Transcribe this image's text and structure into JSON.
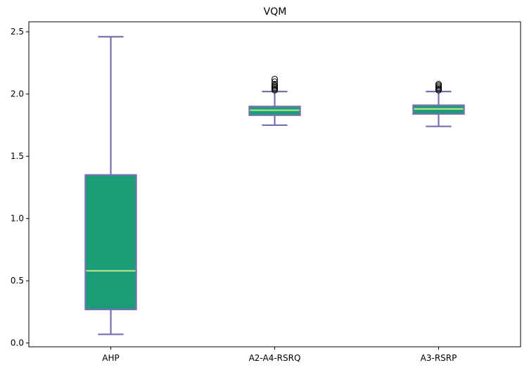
{
  "chart_data": {
    "type": "box",
    "title": "VQM",
    "xlabel": "",
    "ylabel": "",
    "categories": [
      "AHP",
      "A2-A4-RSRQ",
      "A3-RSRP"
    ],
    "ylim": [
      -0.03,
      2.58
    ],
    "yticks": [
      "0.0",
      "0.5",
      "1.0",
      "1.5",
      "2.0",
      "2.5"
    ],
    "ytick_values": [
      0.0,
      0.5,
      1.0,
      1.5,
      2.0,
      2.5
    ],
    "grid": false,
    "boxes": [
      {
        "category": "AHP",
        "whisker_low": 0.07,
        "q1": 0.27,
        "median": 0.58,
        "q3": 1.35,
        "whisker_high": 2.46,
        "outliers": []
      },
      {
        "category": "A2-A4-RSRQ",
        "whisker_low": 1.75,
        "q1": 1.83,
        "median": 1.87,
        "q3": 1.9,
        "whisker_high": 2.02,
        "outliers": [
          2.03,
          2.04,
          2.05,
          2.06,
          2.07,
          2.08,
          2.1,
          2.12
        ]
      },
      {
        "category": "A3-RSRP",
        "whisker_low": 1.74,
        "q1": 1.84,
        "median": 1.88,
        "q3": 1.91,
        "whisker_high": 2.02,
        "outliers": [
          2.03,
          2.04,
          2.05,
          2.06,
          2.07,
          2.08
        ]
      }
    ],
    "colors": {
      "box_fill": "#1b9e77",
      "box_edge": "#7570b3",
      "median": "#b2df8a",
      "outlier": "#000000"
    }
  }
}
